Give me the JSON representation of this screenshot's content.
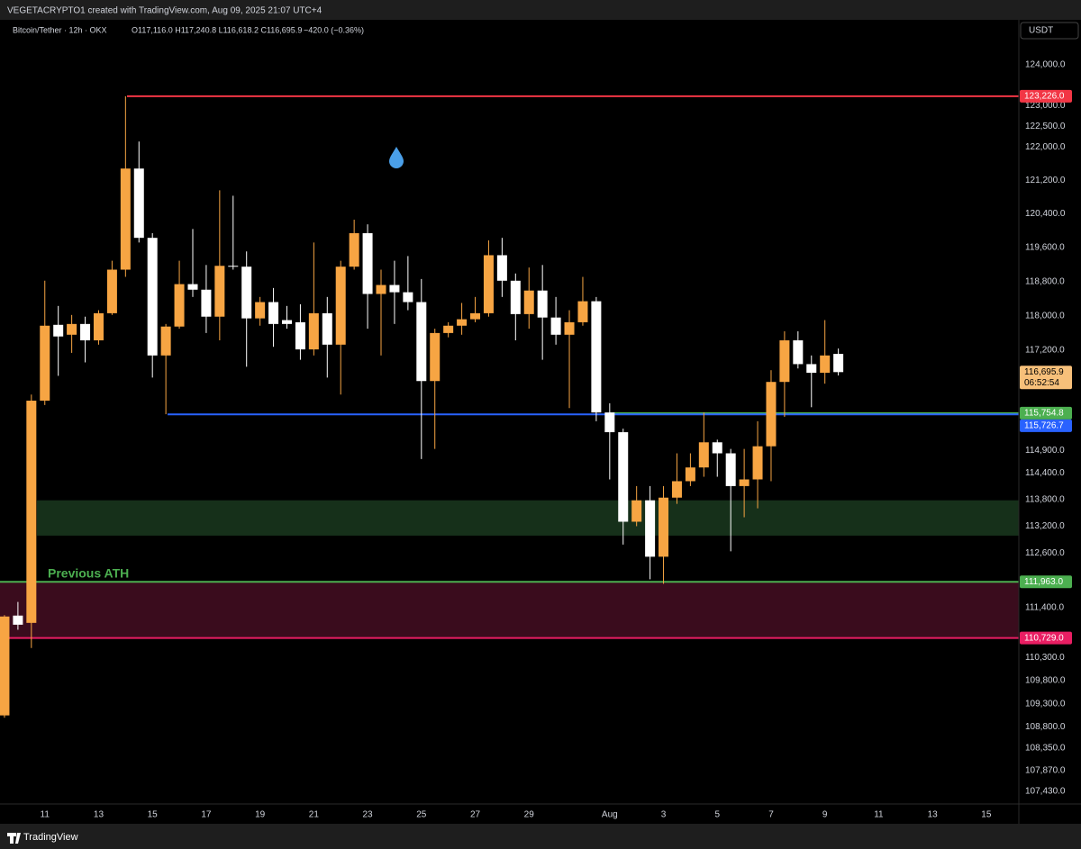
{
  "header": {
    "credit": "VEGETACRYPTO1 created with TradingView.com, Aug 09, 2025 21:07 UTC+4"
  },
  "footer": {
    "brand": "TradingView"
  },
  "chart_data": {
    "type": "candlestick",
    "symbol": "Bitcoin/Tether · 12h · OKX",
    "ohlc_text": "O117,116.0 H117,240.8 L116,618.2 C116,695.9",
    "change_text": "−420.0 (−0.36%)",
    "currency": "USDT",
    "annotation": "Previous ATH",
    "log_scale": true,
    "grid": false,
    "up_color": "#f7a543",
    "down_color": "#ffffff",
    "categories": [
      null,
      null,
      null,
      "11",
      null,
      null,
      null,
      "13",
      null,
      null,
      null,
      "15",
      null,
      null,
      null,
      "17",
      null,
      null,
      null,
      "19",
      null,
      null,
      null,
      "21",
      null,
      null,
      null,
      "23",
      null,
      null,
      null,
      "25",
      null,
      null,
      null,
      "27",
      null,
      null,
      null,
      "29",
      null,
      null,
      null,
      null,
      null,
      "Aug",
      null,
      null,
      null,
      "3",
      null,
      null,
      null,
      "5",
      null,
      null,
      null,
      "7",
      null,
      null,
      null,
      "9",
      null,
      null,
      null,
      "11",
      null,
      null,
      null,
      "13",
      null,
      null,
      null,
      "15",
      null
    ],
    "open": [
      109050,
      111220,
      111060,
      116040,
      117790,
      117560,
      117810,
      117430,
      118060,
      119080,
      121480,
      119830,
      117080,
      117750,
      118740,
      118610,
      117980,
      119170,
      119150,
      117940,
      118320,
      117900,
      117850,
      117220,
      118060,
      117330,
      119150,
      119940,
      118510,
      118720,
      118550,
      118320,
      116490,
      117600,
      117770,
      117920,
      118060,
      119420,
      118820,
      118040,
      118590,
      117960,
      117560,
      117850,
      118340,
      115770,
      115320,
      113300,
      113780,
      112520,
      113840,
      114210,
      114520,
      115090,
      114840,
      114100,
      114250,
      115000,
      116470,
      117430,
      116880,
      116680,
      117116.0,
      null,
      null,
      null,
      null,
      null,
      null,
      null,
      null,
      null,
      null,
      null,
      null
    ],
    "high": [
      111230,
      111520,
      116180,
      118820,
      118230,
      118020,
      117980,
      118130,
      119290,
      123226,
      122130,
      119940,
      117810,
      119290,
      120040,
      119190,
      120960,
      120830,
      119510,
      118440,
      118650,
      118230,
      118270,
      119720,
      118440,
      119290,
      120260,
      120150,
      119080,
      119290,
      119400,
      118860,
      117700,
      117850,
      118300,
      118440,
      119770,
      119830,
      118990,
      119130,
      119190,
      118440,
      118130,
      118910,
      118440,
      115980,
      115400,
      114100,
      114100,
      114100,
      114840,
      114840,
      115770,
      115150,
      114940,
      114940,
      115570,
      116740,
      117640,
      117640,
      117080,
      117900,
      117240.8,
      null,
      null,
      null,
      null,
      null,
      null,
      null,
      null,
      null,
      null,
      null,
      null
    ],
    "low": [
      109000,
      110910,
      110510,
      115940,
      116610,
      117140,
      116920,
      117330,
      118020,
      118910,
      119720,
      116570,
      115730,
      117700,
      118440,
      117600,
      117430,
      119080,
      116820,
      117770,
      117280,
      117700,
      116980,
      117080,
      116570,
      116180,
      119080,
      117700,
      117080,
      117810,
      118130,
      114710,
      114940,
      117500,
      117560,
      117850,
      117980,
      118440,
      117430,
      117700,
      116980,
      117330,
      115870,
      117770,
      115570,
      114250,
      112790,
      113200,
      112020,
      111920,
      113700,
      114100,
      114310,
      114310,
      112640,
      113400,
      113600,
      114210,
      115670,
      116780,
      115890,
      116430,
      116618.2,
      null,
      null,
      null,
      null,
      null,
      null,
      null,
      null,
      null,
      null,
      null,
      null
    ],
    "close": [
      111200,
      111020,
      116040,
      117770,
      117520,
      117810,
      117430,
      118060,
      119080,
      121480,
      119830,
      117080,
      117750,
      118740,
      118610,
      117980,
      119170,
      119150,
      117940,
      118320,
      117810,
      117810,
      117220,
      118060,
      117330,
      119150,
      119940,
      118510,
      118720,
      118550,
      118320,
      116490,
      117600,
      117770,
      117920,
      118060,
      119420,
      118820,
      118040,
      118590,
      117960,
      117560,
      117850,
      118340,
      115770,
      115320,
      113300,
      113780,
      112520,
      113840,
      114210,
      114520,
      115090,
      114840,
      114100,
      114250,
      115000,
      116470,
      117430,
      116880,
      116680,
      117080,
      116695.9,
      null,
      null,
      null,
      null,
      null,
      null,
      null,
      null,
      null,
      null,
      null,
      null
    ],
    "ylim": [
      107160,
      125100
    ],
    "yticks": [
      {
        "value": 124000,
        "label": "124,000.0"
      },
      {
        "value": 123000,
        "label": "123,000.0"
      },
      {
        "value": 122500,
        "label": "122,500.0"
      },
      {
        "value": 122000,
        "label": "122,000.0"
      },
      {
        "value": 121200,
        "label": "121,200.0"
      },
      {
        "value": 120400,
        "label": "120,400.0"
      },
      {
        "value": 119600,
        "label": "119,600.0"
      },
      {
        "value": 118800,
        "label": "118,800.0"
      },
      {
        "value": 118000,
        "label": "118,000.0"
      },
      {
        "value": 117200,
        "label": "117,200.0"
      },
      {
        "value": 114900,
        "label": "114,900.0"
      },
      {
        "value": 114400,
        "label": "114,400.0"
      },
      {
        "value": 113800,
        "label": "113,800.0"
      },
      {
        "value": 113200,
        "label": "113,200.0"
      },
      {
        "value": 112600,
        "label": "112,600.0"
      },
      {
        "value": 111400,
        "label": "111,400.0"
      },
      {
        "value": 110300,
        "label": "110,300.0"
      },
      {
        "value": 109800,
        "label": "109,800.0"
      },
      {
        "value": 109300,
        "label": "109,300.0"
      },
      {
        "value": 108800,
        "label": "108,800.0"
      },
      {
        "value": 108350,
        "label": "108,350.0"
      },
      {
        "value": 107870,
        "label": "107,870.0"
      },
      {
        "value": 107430,
        "label": "107,430.0"
      }
    ],
    "levels": [
      {
        "value": 123226.0,
        "label": "123,226.0",
        "color": "#f23645"
      },
      {
        "value": 115754.8,
        "label": "115,754.8",
        "color": "#4caf50"
      },
      {
        "value": 115726.7,
        "label": "115,726.7",
        "color": "#2962ff"
      },
      {
        "value": 111963.0,
        "label": "111,963.0",
        "color": "#4caf50"
      },
      {
        "value": 110729.0,
        "label": "110,729.0",
        "color": "#e91e63"
      }
    ],
    "zones": [
      {
        "top": 113780,
        "bottom": 112990,
        "color": "#16301a"
      },
      {
        "top": 111963.0,
        "bottom": 110729.0,
        "color": "#3a0c1d"
      }
    ],
    "last_price": {
      "value": 116695.9,
      "label": "116,695.9",
      "countdown": "06:52:54",
      "color": "#f7c07a"
    }
  }
}
